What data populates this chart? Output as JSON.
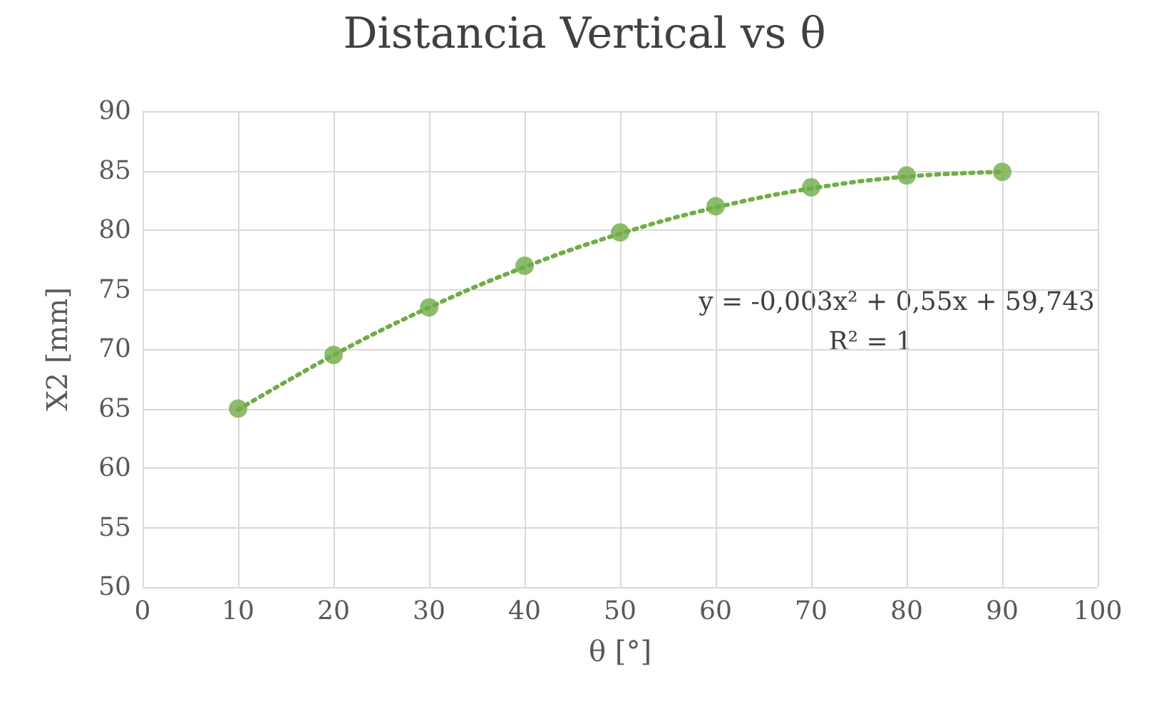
{
  "chart_data": {
    "type": "scatter",
    "title": "Distancia Vertical vs θ",
    "xlabel": "θ [°]",
    "ylabel": "X2 [mm]",
    "x": [
      10,
      20,
      30,
      40,
      50,
      60,
      70,
      80,
      90
    ],
    "series": [
      {
        "type": "scatter",
        "color": "#70ad47",
        "marker": "circle",
        "values": [
          65.0,
          69.5,
          73.5,
          77.0,
          79.8,
          82.0,
          83.6,
          84.6,
          84.9
        ]
      },
      {
        "type": "line",
        "color": "#70ad47",
        "marker": "none",
        "line_style": "dotted",
        "x": [
          10,
          20,
          30,
          40,
          50,
          60,
          70,
          80,
          90
        ],
        "values": [
          64.9,
          69.5,
          73.5,
          76.9,
          79.7,
          81.9,
          83.5,
          84.5,
          84.9
        ]
      }
    ],
    "xlim": [
      0,
      100
    ],
    "xticks": [
      0,
      10,
      20,
      30,
      40,
      50,
      60,
      70,
      80,
      90,
      100
    ],
    "ylim": [
      50,
      90
    ],
    "yticks": [
      50,
      55,
      60,
      65,
      70,
      75,
      80,
      85,
      90
    ],
    "grid": true,
    "annotations": [
      "y = -0,003x² + 0,55x + 59,743",
      "R² = 1"
    ]
  }
}
